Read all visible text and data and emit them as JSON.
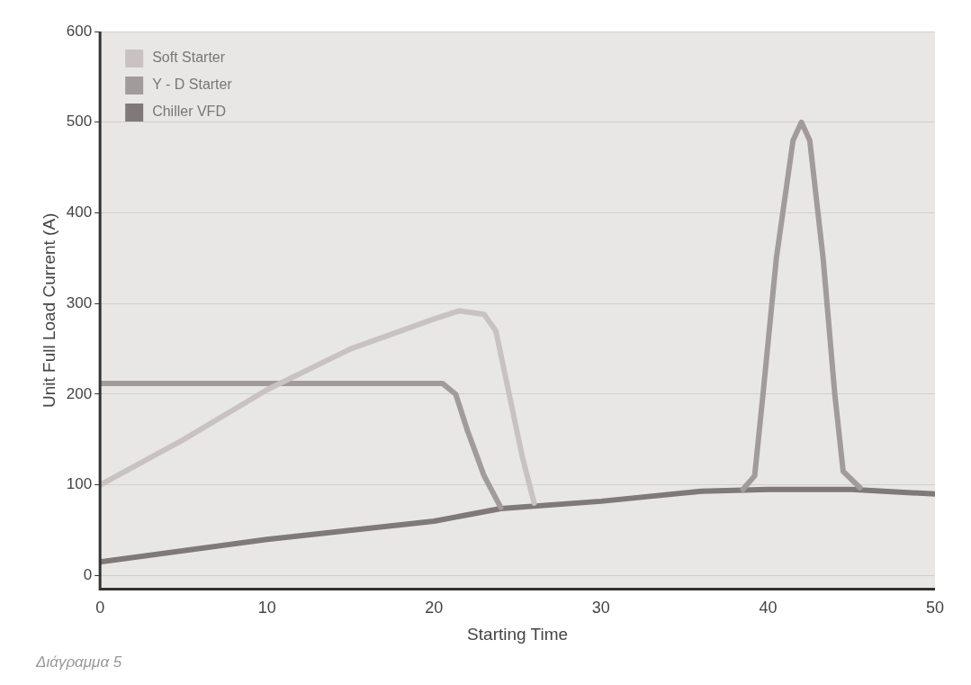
{
  "chart_data": {
    "type": "line",
    "xlabel": "Starting Time",
    "ylabel": "Unit Full Load Current (A)",
    "xlim": [
      0,
      50
    ],
    "xticks": [
      0,
      10,
      20,
      30,
      40,
      50
    ],
    "ylim": [
      -15,
      600
    ],
    "yticks": [
      0,
      100,
      200,
      300,
      400,
      500,
      600
    ],
    "grid": "y",
    "legend": "top left",
    "marker": "none",
    "line_style": "solid",
    "annotations": [
      "Διάγραμμα 5"
    ],
    "series": [
      {
        "name": "Soft Starter",
        "color": "#c9c2c2",
        "x": [
          0,
          5,
          10,
          15,
          20,
          21.5,
          23,
          23.7,
          24.5,
          25.3,
          26
        ],
        "values": [
          100,
          150,
          205,
          250,
          283,
          292,
          288,
          270,
          200,
          130,
          80
        ]
      },
      {
        "name": "Y - D Starter",
        "color": "#a29b9b",
        "x": [
          0,
          20.5,
          21.3,
          22,
          23,
          24,
          30,
          38.5,
          39.2,
          39.7,
          40.5,
          41.5,
          42,
          42.5,
          43.3,
          44,
          44.5,
          45.5
        ],
        "values": [
          212,
          212,
          200,
          160,
          110,
          75,
          null,
          95,
          110,
          200,
          350,
          480,
          500,
          480,
          350,
          200,
          115,
          97
        ]
      },
      {
        "name": "Chiller VFD",
        "color": "#7f7979",
        "x": [
          0,
          10,
          20,
          24,
          30,
          36,
          40,
          45,
          50
        ],
        "values": [
          15,
          40,
          60,
          74,
          82,
          93,
          95,
          95,
          90
        ]
      }
    ]
  }
}
